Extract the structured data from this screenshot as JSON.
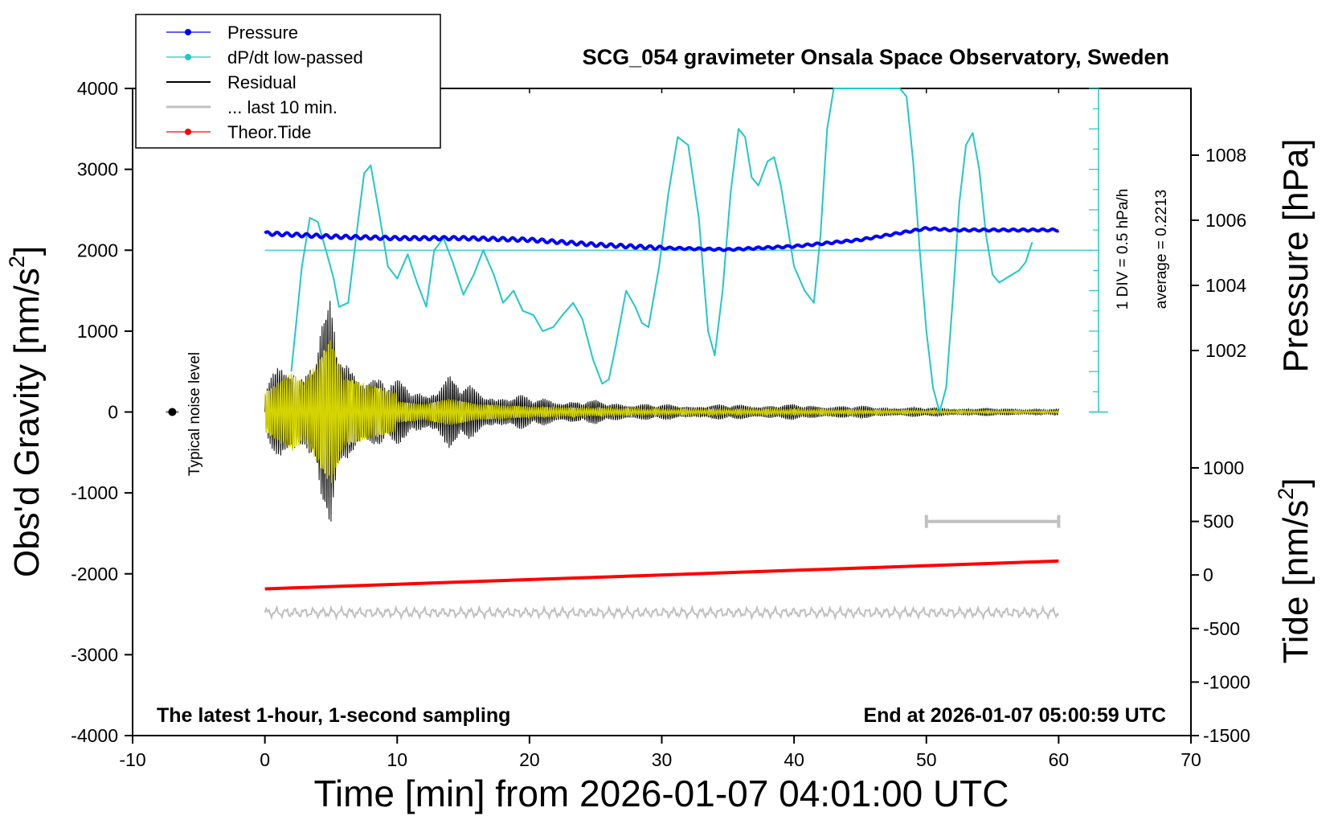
{
  "chart_data": {
    "type": "line",
    "title": "SCG_054 gravimeter Onsala Space Observatory, Sweden",
    "xlabel": "Time [min] from 2026-01-07 04:01:00 UTC",
    "ylabel_main": "Obs'd Gravity [nm/s",
    "ylabel_pressure": "Pressure [hPa]",
    "ylabel_tide": "Tide [nm/s",
    "sup2": "2",
    "ylabel_tail": "]",
    "xlim": [
      -10,
      70
    ],
    "ylim": [
      -4000,
      4000
    ],
    "x_ticks": [
      "-10",
      "0",
      "10",
      "20",
      "30",
      "40",
      "50",
      "60",
      "70"
    ],
    "y_ticks": [
      "4000",
      "3000",
      "2000",
      "1000",
      "0",
      "-1000",
      "-2000",
      "-3000",
      "-4000"
    ],
    "pressure_axis": {
      "range_hPa": [
        1000,
        1010
      ],
      "ticks": [
        "1008",
        "1006",
        "1004",
        "1002"
      ]
    },
    "tide_axis": {
      "range": [
        -1500,
        1500
      ],
      "ticks": [
        "1000",
        "500",
        "0",
        "-500",
        "-1000",
        "-1500"
      ]
    },
    "legend": [
      {
        "label": "Pressure",
        "color": "#0000ff"
      },
      {
        "label": "dP/dt low-passed",
        "color": "#20c8c8"
      },
      {
        "label": "Residual",
        "color": "#000000"
      },
      {
        "label": "... last 10 min.",
        "color": "#c0c0c0"
      },
      {
        "label": "Theor.Tide",
        "color": "#ff0000"
      }
    ],
    "annotations": {
      "left_bottom": "The latest 1-hour, 1-second sampling",
      "right_bottom": "End at 2026-01-07 05:00:59 UTC",
      "noise": "Typical noise level",
      "div": "1 DIV = 0.5 hPa/h",
      "average": "average = 0.2213"
    },
    "series": [
      {
        "name": "Pressure",
        "axis": "pressure_hPa",
        "x": [
          0,
          5,
          10,
          15,
          20,
          25,
          30,
          35,
          40,
          45,
          50,
          52,
          55,
          60
        ],
        "values": [
          1005.6,
          1005.5,
          1005.45,
          1005.45,
          1005.4,
          1005.25,
          1005.15,
          1005.1,
          1005.2,
          1005.4,
          1005.75,
          1005.7,
          1005.7,
          1005.7
        ]
      },
      {
        "name": "dP/dt low-passed",
        "axis": "gravity",
        "x": [
          2,
          2.8,
          3.4,
          4.0,
          4.7,
          5.2,
          5.6,
          6.3,
          7.0,
          7.5,
          8.0,
          8.7,
          9.3,
          10.0,
          10.8,
          11.5,
          12.2,
          12.8,
          13.5,
          14.2,
          15.0,
          15.8,
          16.5,
          17.3,
          18.0,
          18.8,
          19.5,
          20.3,
          21.0,
          21.8,
          22.5,
          23.3,
          24.0,
          24.8,
          25.5,
          26.0,
          26.5,
          27.3,
          28.0,
          28.5,
          29.0,
          29.8,
          30.5,
          31.2,
          32.0,
          32.8,
          33.5,
          34.0,
          34.6,
          35.2,
          35.8,
          36.3,
          36.8,
          37.3,
          38.0,
          38.5,
          39.0,
          39.5,
          40.0,
          40.8,
          41.5,
          42.0,
          42.5,
          43.0,
          43.5,
          44.0,
          44.5,
          45.0,
          45.5,
          46.0,
          46.5,
          47.0,
          47.5,
          48.0,
          48.5,
          49.0,
          49.5,
          50.0,
          50.5,
          51.0,
          51.5,
          52.0,
          52.5,
          53.0,
          53.5,
          54.0,
          54.5,
          55.0,
          55.5,
          56.0,
          56.5,
          57.0,
          57.5,
          58.0
        ],
        "values": [
          500,
          1800,
          2400,
          2350,
          1950,
          1650,
          1300,
          1350,
          2300,
          2950,
          3050,
          2400,
          1800,
          1650,
          1950,
          1600,
          1300,
          2000,
          2150,
          1850,
          1450,
          1700,
          2000,
          1700,
          1350,
          1500,
          1250,
          1200,
          1000,
          1050,
          1200,
          1350,
          1150,
          650,
          350,
          400,
          800,
          1500,
          1300,
          1100,
          1050,
          1800,
          2700,
          3400,
          3300,
          2400,
          1000,
          700,
          1500,
          2700,
          3500,
          3400,
          2900,
          2800,
          3100,
          3150,
          2800,
          2300,
          1800,
          1500,
          1350,
          2200,
          3500,
          4000,
          4000,
          4000,
          4000,
          4000,
          4000,
          4000,
          4000,
          4000,
          4000,
          4000,
          3900,
          3100,
          2000,
          1000,
          300,
          0,
          300,
          1400,
          2600,
          3300,
          3450,
          3000,
          2200,
          1700,
          1600,
          1650,
          1700,
          1750,
          1850,
          2100
        ]
      },
      {
        "name": "Residual",
        "axis": "gravity",
        "x": [
          0,
          2,
          3,
          5,
          6,
          10,
          12,
          14,
          16,
          20,
          30,
          40,
          45,
          50,
          55,
          60
        ],
        "envelope": [
          400,
          800,
          600,
          1500,
          700,
          400,
          300,
          500,
          300,
          200,
          100,
          100,
          80,
          60,
          50,
          40
        ]
      },
      {
        "name": "... last 10 min.",
        "axis": "gravity",
        "x": [
          0,
          60
        ],
        "values": [
          -2480,
          -2480
        ]
      },
      {
        "name": "Theor.Tide",
        "axis": "tide",
        "x": [
          0,
          60
        ],
        "values": [
          -130,
          130
        ]
      }
    ],
    "noise_level_marker": {
      "x": -7,
      "value": 0
    },
    "scale_bar": {
      "x_range": [
        50,
        60
      ],
      "tide": 500
    }
  }
}
